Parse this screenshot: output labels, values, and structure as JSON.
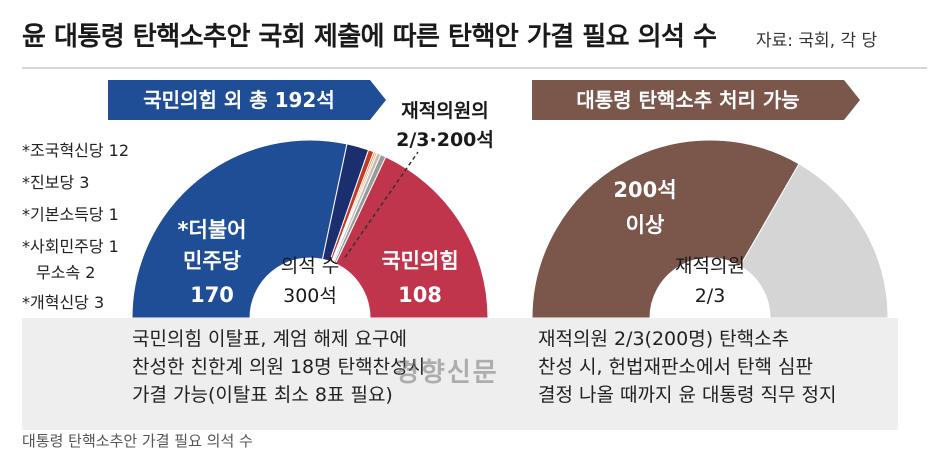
{
  "header": {
    "title": "윤 대통령 탄핵소추안 국회 제출에 따른 탄핵안 가결 필요 의석 수",
    "source": "자료: 국회, 각 당"
  },
  "left_chart": {
    "banner": "국민의힘 외 총 192석",
    "threshold_line1": "재적의원의",
    "threshold_line2": "2/3·200석",
    "center_line1": "의석 수",
    "center_line2": "300석",
    "dp_line1": "*더불어",
    "dp_line2": "민주당",
    "dp_value": "170",
    "ppp_label": "국민의힘",
    "ppp_value": "108",
    "small_parties": [
      "*조국혁신당 12",
      "*진보당 3",
      "*기본소득당 1",
      "*사회민주당 1",
      "무소속 2",
      "*개혁신당 3"
    ],
    "colors": {
      "democratic": "#1f4e97",
      "rebuilding": "#1b2f6e",
      "progressive": "#c0392b",
      "basic_income": "#e67e22",
      "social_democratic": "#f0a040",
      "independent": "#bbbbbb",
      "reform": "#9a9a9a",
      "ppp": "#c0354b"
    }
  },
  "right_chart": {
    "banner": "대통령 탄핵소추 처리 가능",
    "main_line1": "200석",
    "main_line2": "이상",
    "center_line1": "재적의원",
    "center_line2": "2/3",
    "colors": {
      "required": "#7a564b",
      "remaining": "#d5d5d5"
    }
  },
  "notes": {
    "left": [
      "국민의힘 이탈표, 계엄 해제 요구에",
      "찬성한 친한계 의원 18명 탄핵찬성시",
      "가결 가능(이탈표 최소 8표 필요)"
    ],
    "right": [
      "재적의원 2/3(200명) 탄핵소추",
      "찬성 시, 헌법재판소에서 탄핵 심판",
      "결정 나올 때까지 윤 대통령 직무 정지"
    ]
  },
  "watermark": "경향신문",
  "caption": "대통령 탄핵소추안 가결 필요 의석 수",
  "chart_data": [
    {
      "type": "pie",
      "title": "국민의힘 외 총 192석",
      "total": 300,
      "annotations": [
        "재적의원의 2/3·200석",
        "의석 수 300석"
      ],
      "categories": [
        "더불어민주당",
        "조국혁신당",
        "진보당",
        "기본소득당",
        "사회민주당",
        "무소속",
        "개혁신당",
        "국민의힘"
      ],
      "values": [
        170,
        12,
        3,
        1,
        1,
        2,
        3,
        108
      ]
    },
    {
      "type": "pie",
      "title": "대통령 탄핵소추 처리 가능",
      "total": 300,
      "annotations": [
        "200석 이상",
        "재적의원 2/3"
      ],
      "categories": [
        "200석 이상",
        ""
      ],
      "values": [
        200,
        100
      ]
    }
  ]
}
